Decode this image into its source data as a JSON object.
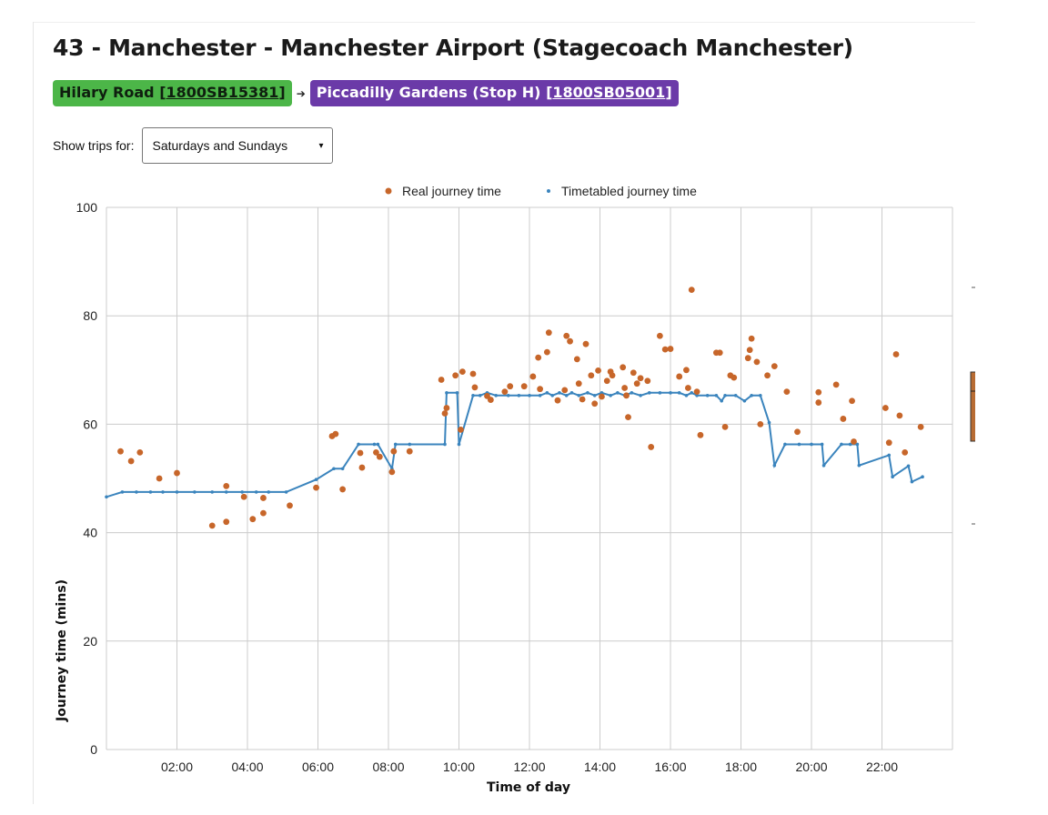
{
  "page": {
    "title": "43 - Manchester - Manchester Airport (Stagecoach Manchester)",
    "from_stop": {
      "name": "Hilary Road",
      "code": "1800SB15381"
    },
    "to_stop": {
      "name": "Piccadilly Gardens (Stop H)",
      "code": "1800SB05001"
    },
    "arrow_glyph": "➔",
    "filter_label": "Show trips for:",
    "filter_value": "Saturdays and Sundays",
    "chevron_glyph": "⌄"
  },
  "colors": {
    "real": "#c7662a",
    "timetabled": "#3a84bd",
    "from_bg": "#4cb648",
    "to_bg": "#6b3aa8"
  },
  "chart_data": {
    "type": "scatter",
    "xlabel": "Time of day",
    "ylabel": "Journey time (mins)",
    "xlim": [
      0,
      24
    ],
    "ylim": [
      0,
      100
    ],
    "x_ticks": [
      2,
      4,
      6,
      8,
      10,
      12,
      14,
      16,
      18,
      20,
      22
    ],
    "x_tick_labels": [
      "02:00",
      "04:00",
      "06:00",
      "08:00",
      "10:00",
      "12:00",
      "14:00",
      "16:00",
      "18:00",
      "20:00",
      "22:00"
    ],
    "y_ticks": [
      0,
      20,
      40,
      60,
      80,
      100
    ],
    "y_tick_labels": [
      "0",
      "20",
      "40",
      "60",
      "80",
      "100"
    ],
    "legend": [
      "Real journey time",
      "Timetabled journey time"
    ],
    "series": [
      {
        "name": "Real journey time",
        "kind": "scatter",
        "points": [
          [
            0.4,
            55
          ],
          [
            0.7,
            53.2
          ],
          [
            0.95,
            54.8
          ],
          [
            1.5,
            50
          ],
          [
            2.0,
            51
          ],
          [
            3.0,
            41.3
          ],
          [
            3.4,
            42
          ],
          [
            3.4,
            48.6
          ],
          [
            3.9,
            46.6
          ],
          [
            4.15,
            42.5
          ],
          [
            4.45,
            46.4
          ],
          [
            4.45,
            43.6
          ],
          [
            5.2,
            45
          ],
          [
            5.95,
            48.3
          ],
          [
            6.4,
            57.8
          ],
          [
            6.5,
            58.2
          ],
          [
            6.7,
            48
          ],
          [
            7.2,
            54.7
          ],
          [
            7.25,
            52
          ],
          [
            7.65,
            54.8
          ],
          [
            7.75,
            54
          ],
          [
            8.1,
            51.2
          ],
          [
            8.15,
            55
          ],
          [
            8.6,
            55
          ],
          [
            9.5,
            68.2
          ],
          [
            9.6,
            62
          ],
          [
            9.65,
            63
          ],
          [
            9.9,
            69
          ],
          [
            10.05,
            59
          ],
          [
            10.1,
            69.7
          ],
          [
            10.4,
            69.3
          ],
          [
            10.45,
            66.8
          ],
          [
            10.8,
            65.2
          ],
          [
            10.9,
            64.5
          ],
          [
            11.3,
            66
          ],
          [
            11.45,
            67
          ],
          [
            11.85,
            67
          ],
          [
            12.1,
            68.8
          ],
          [
            12.25,
            72.3
          ],
          [
            12.3,
            66.5
          ],
          [
            12.5,
            73.3
          ],
          [
            12.55,
            76.9
          ],
          [
            12.8,
            64.4
          ],
          [
            13.0,
            66.3
          ],
          [
            13.05,
            76.3
          ],
          [
            13.15,
            75.3
          ],
          [
            13.35,
            72
          ],
          [
            13.4,
            67.5
          ],
          [
            13.5,
            64.6
          ],
          [
            13.6,
            74.8
          ],
          [
            13.75,
            69
          ],
          [
            13.85,
            63.8
          ],
          [
            13.95,
            69.9
          ],
          [
            14.05,
            65.1
          ],
          [
            14.2,
            68
          ],
          [
            14.3,
            69.7
          ],
          [
            14.35,
            69
          ],
          [
            14.65,
            70.5
          ],
          [
            14.7,
            66.7
          ],
          [
            14.75,
            65.3
          ],
          [
            14.8,
            61.3
          ],
          [
            14.95,
            69.5
          ],
          [
            15.05,
            67.5
          ],
          [
            15.15,
            68.5
          ],
          [
            15.35,
            68
          ],
          [
            15.45,
            55.8
          ],
          [
            15.7,
            76.3
          ],
          [
            15.85,
            73.8
          ],
          [
            16.0,
            73.9
          ],
          [
            16.25,
            68.8
          ],
          [
            16.45,
            70
          ],
          [
            16.5,
            66.7
          ],
          [
            16.6,
            84.8
          ],
          [
            16.75,
            66
          ],
          [
            16.85,
            58
          ],
          [
            17.3,
            73.2
          ],
          [
            17.4,
            73.2
          ],
          [
            17.55,
            59.5
          ],
          [
            17.7,
            69
          ],
          [
            17.8,
            68.6
          ],
          [
            18.2,
            72.2
          ],
          [
            18.25,
            73.7
          ],
          [
            18.3,
            75.8
          ],
          [
            18.45,
            71.5
          ],
          [
            18.55,
            60
          ],
          [
            18.75,
            69
          ],
          [
            18.95,
            70.7
          ],
          [
            19.3,
            66
          ],
          [
            19.6,
            58.6
          ],
          [
            20.2,
            65.9
          ],
          [
            20.2,
            64
          ],
          [
            20.7,
            67.3
          ],
          [
            20.9,
            61
          ],
          [
            21.15,
            64.3
          ],
          [
            21.2,
            56.8
          ],
          [
            22.1,
            63
          ],
          [
            22.2,
            56.6
          ],
          [
            22.4,
            72.9
          ],
          [
            22.5,
            61.6
          ],
          [
            22.65,
            54.8
          ],
          [
            23.1,
            59.5
          ]
        ]
      },
      {
        "name": "Timetabled journey time",
        "kind": "line",
        "points": [
          [
            0,
            46.6
          ],
          [
            0.45,
            47.5
          ],
          [
            0.85,
            47.5
          ],
          [
            1.25,
            47.5
          ],
          [
            1.6,
            47.5
          ],
          [
            2.0,
            47.5
          ],
          [
            2.5,
            47.5
          ],
          [
            3.0,
            47.5
          ],
          [
            3.4,
            47.5
          ],
          [
            3.85,
            47.5
          ],
          [
            4.25,
            47.5
          ],
          [
            4.6,
            47.5
          ],
          [
            5.1,
            47.5
          ],
          [
            5.95,
            49.8
          ],
          [
            6.45,
            51.8
          ],
          [
            6.7,
            51.8
          ],
          [
            7.15,
            56.3
          ],
          [
            7.6,
            56.3
          ],
          [
            7.7,
            56.3
          ],
          [
            8.1,
            51.8
          ],
          [
            8.2,
            56.3
          ],
          [
            8.6,
            56.3
          ],
          [
            9.6,
            56.3
          ],
          [
            9.65,
            65.8
          ],
          [
            9.95,
            65.8
          ],
          [
            10.0,
            56.3
          ],
          [
            10.4,
            65.3
          ],
          [
            10.6,
            65.3
          ],
          [
            10.8,
            65.8
          ],
          [
            11.05,
            65.3
          ],
          [
            11.4,
            65.3
          ],
          [
            11.7,
            65.3
          ],
          [
            12.0,
            65.3
          ],
          [
            12.3,
            65.3
          ],
          [
            12.5,
            65.8
          ],
          [
            12.65,
            65.3
          ],
          [
            12.85,
            65.8
          ],
          [
            13.05,
            65.3
          ],
          [
            13.2,
            65.8
          ],
          [
            13.4,
            65.3
          ],
          [
            13.65,
            65.8
          ],
          [
            13.85,
            65.3
          ],
          [
            14.05,
            65.8
          ],
          [
            14.3,
            65.3
          ],
          [
            14.5,
            65.8
          ],
          [
            14.7,
            65.3
          ],
          [
            14.9,
            65.8
          ],
          [
            15.15,
            65.3
          ],
          [
            15.4,
            65.8
          ],
          [
            15.7,
            65.8
          ],
          [
            16.0,
            65.8
          ],
          [
            16.25,
            65.8
          ],
          [
            16.45,
            65.3
          ],
          [
            16.6,
            65.8
          ],
          [
            16.75,
            65.3
          ],
          [
            17.05,
            65.3
          ],
          [
            17.3,
            65.3
          ],
          [
            17.45,
            64.3
          ],
          [
            17.55,
            65.3
          ],
          [
            17.85,
            65.3
          ],
          [
            18.1,
            64.3
          ],
          [
            18.3,
            65.3
          ],
          [
            18.55,
            65.3
          ],
          [
            18.8,
            60.3
          ],
          [
            18.95,
            52.4
          ],
          [
            19.25,
            56.3
          ],
          [
            19.65,
            56.3
          ],
          [
            20.0,
            56.3
          ],
          [
            20.3,
            56.3
          ],
          [
            20.35,
            52.4
          ],
          [
            20.85,
            56.3
          ],
          [
            21.1,
            56.3
          ],
          [
            21.3,
            56.3
          ],
          [
            21.35,
            52.4
          ],
          [
            22.2,
            54.3
          ],
          [
            22.3,
            50.3
          ],
          [
            22.75,
            52.3
          ],
          [
            22.85,
            49.4
          ],
          [
            23.15,
            50.3
          ]
        ]
      }
    ]
  }
}
